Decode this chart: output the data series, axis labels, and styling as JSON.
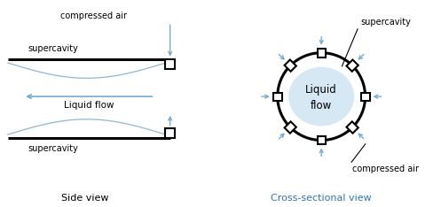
{
  "fig_width": 4.97,
  "fig_height": 2.34,
  "dpi": 100,
  "bg_color": "#ffffff",
  "line_color": "#000000",
  "arrow_color": "#7aabcf",
  "text_color": "#000000",
  "side_view_label": "Side view",
  "cross_section_label": "Cross-sectional view",
  "compressed_air_label": "compressed air",
  "supercavity_label": "supercavity",
  "liquid_flow_label": "Liquid flow",
  "liquid_label1": "Liquid",
  "liquid_label2": "flow",
  "cross_label_color": "#2e75b6"
}
